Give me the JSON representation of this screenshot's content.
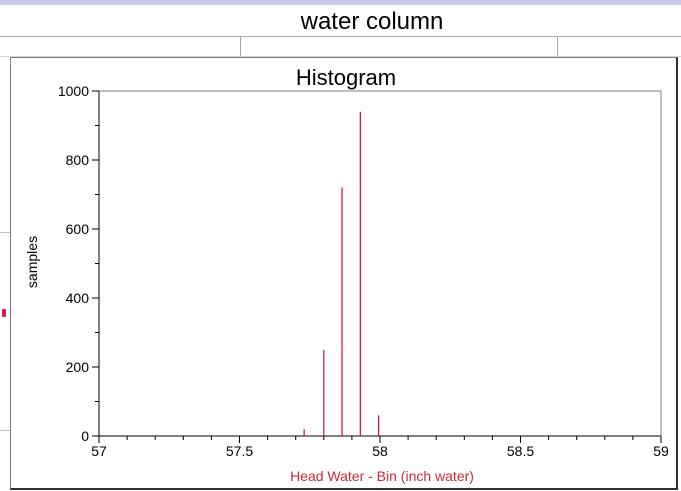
{
  "window": {
    "title": "water column"
  },
  "colors": {
    "accent_bar": "#c9c9f2",
    "series": "#cc0a4e",
    "xlabel": "#cc2a3c"
  },
  "chart_data": {
    "type": "bar",
    "title": "Histogram",
    "xlabel": "Head Water - Bin (inch water)",
    "ylabel": "samples",
    "xlim": [
      57,
      59
    ],
    "ylim": [
      0,
      1000
    ],
    "x_ticks": [
      "57",
      "57.5",
      "58",
      "58.5",
      "59"
    ],
    "y_ticks": [
      "0",
      "200",
      "400",
      "600",
      "800",
      "1000"
    ],
    "grid": false,
    "series": [
      {
        "x": [
          57.73,
          57.8,
          57.865,
          57.93,
          57.995
        ],
        "values": [
          20,
          250,
          720,
          940,
          60
        ]
      }
    ]
  }
}
